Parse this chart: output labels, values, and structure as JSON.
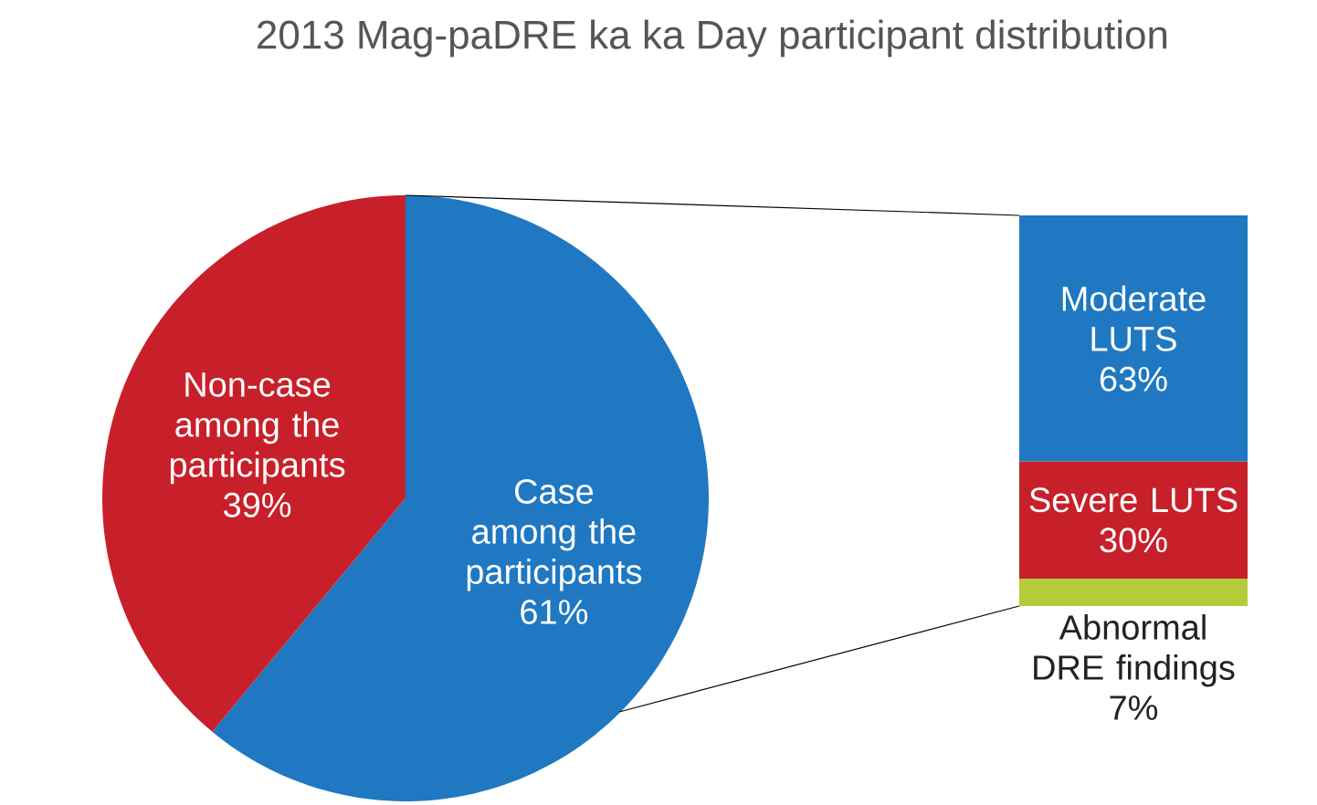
{
  "chart_data": [
    {
      "type": "pie",
      "title": "2013 Mag-paDRE ka ka Day participant distribution",
      "categories": [
        "Case among the participants",
        "Non-case among the participants"
      ],
      "values": [
        61,
        39
      ],
      "colors": [
        "#1f78c1",
        "#c8202a"
      ],
      "value_labels": [
        "61%",
        "39%"
      ]
    },
    {
      "type": "bar",
      "stacked": true,
      "categories": [
        null
      ],
      "series": [
        {
          "name": "Abnormal DRE findings",
          "color": "#b5cc3a",
          "values": [
            7
          ],
          "value_labels": [
            "7%"
          ]
        },
        {
          "name": "Severe LUTS",
          "color": "#c8202a",
          "values": [
            30
          ],
          "value_labels": [
            "30%"
          ]
        },
        {
          "name": "Moderate LUTS",
          "color": "#1f78c1",
          "values": [
            63
          ],
          "value_labels": [
            "63%"
          ]
        }
      ]
    }
  ]
}
